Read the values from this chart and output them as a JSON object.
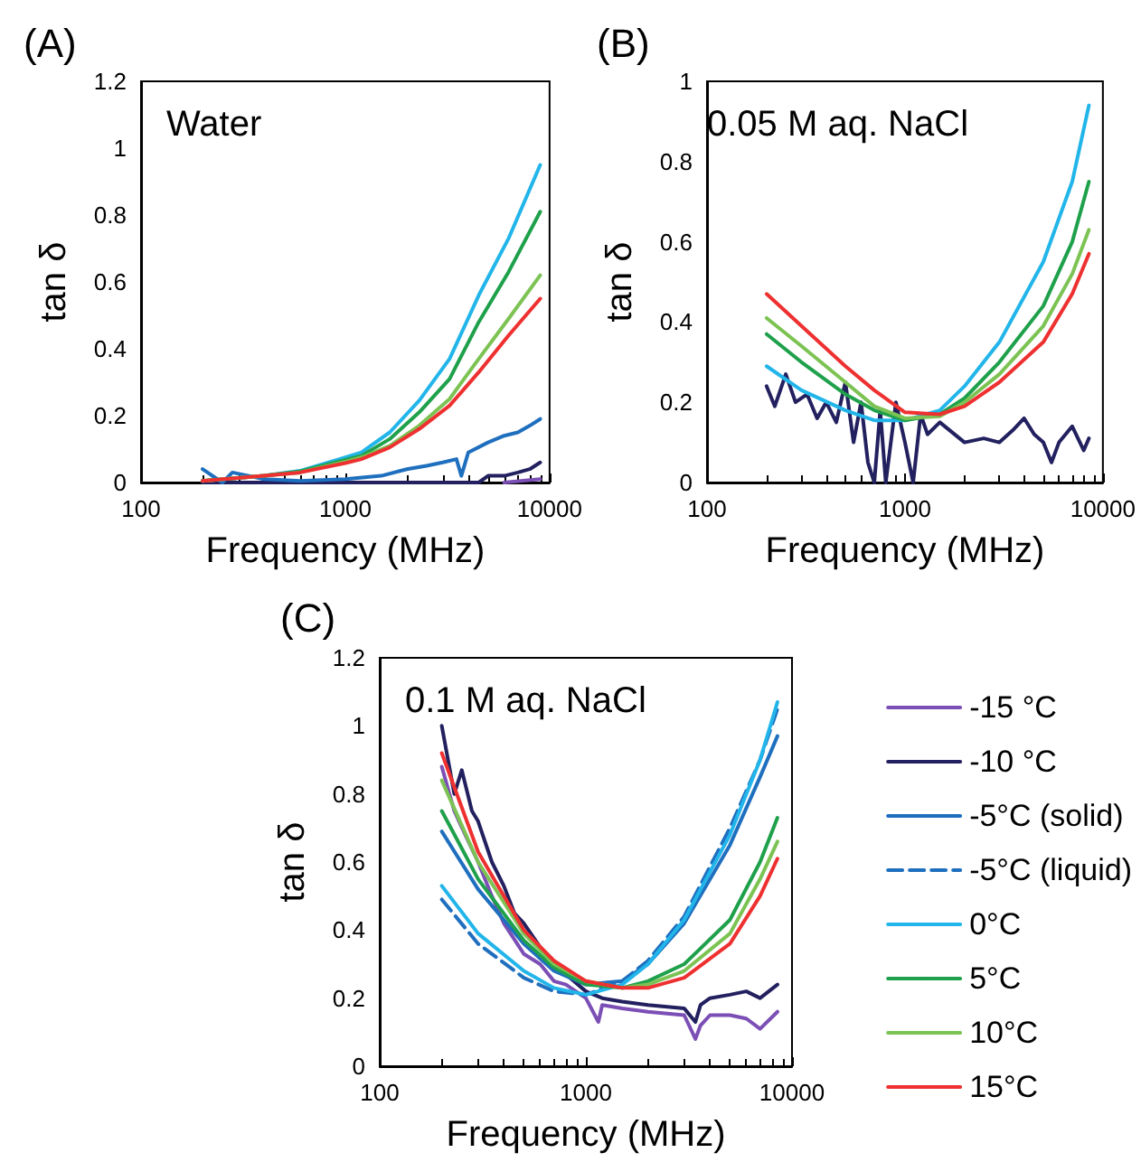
{
  "chart_data": [
    {
      "type": "line",
      "title": "(A)",
      "xlabel": "Frequency (MHz)",
      "ylabel": "tan δ",
      "annotations": [
        "Water"
      ],
      "log": "x",
      "grid": false,
      "marker": "none",
      "legend": false,
      "xlim": [
        100,
        10000
      ],
      "xticks": [
        100,
        1000,
        10000
      ],
      "ylim": [
        0,
        1.2
      ],
      "yticks": [
        0,
        0.2,
        0.4,
        0.6,
        0.8,
        1,
        1.2
      ],
      "series": [
        {
          "color": "#7b4fb5",
          "x": [
            6000,
            9000
          ],
          "values": [
            0,
            0.01
          ]
        },
        {
          "color": "#22205f",
          "x": [
            200,
            1000,
            4500,
            5000,
            6000,
            7000,
            8000,
            9000
          ],
          "values": [
            0,
            0,
            0,
            0.02,
            0.02,
            0.03,
            0.04,
            0.06
          ]
        },
        {
          "color": "#1f6fbf",
          "x": [
            200,
            250,
            280,
            400,
            600,
            1000,
            1500,
            2000,
            2500,
            3000,
            3500,
            3700,
            4000,
            5000,
            6000,
            7000,
            8000,
            9000
          ],
          "values": [
            0.04,
            0,
            0.03,
            0.01,
            0.005,
            0.01,
            0.02,
            0.04,
            0.05,
            0.06,
            0.07,
            0.02,
            0.09,
            0.12,
            0.14,
            0.15,
            0.17,
            0.19
          ]
        },
        {
          "color": "#22b5ea",
          "x": [
            200,
            400,
            600,
            1000,
            1200,
            1650,
            2300,
            3240,
            4500,
            6300,
            9000
          ],
          "values": [
            0.005,
            0.02,
            0.035,
            0.075,
            0.09,
            0.15,
            0.245,
            0.37,
            0.56,
            0.73,
            0.95
          ]
        },
        {
          "color": "#1fa04b",
          "x": [
            200,
            400,
            600,
            1000,
            1200,
            1650,
            2300,
            3240,
            4500,
            6300,
            9000
          ],
          "values": [
            0.005,
            0.02,
            0.033,
            0.068,
            0.08,
            0.13,
            0.21,
            0.31,
            0.48,
            0.63,
            0.81
          ]
        },
        {
          "color": "#7cc353",
          "x": [
            200,
            400,
            600,
            1000,
            1200,
            1650,
            2300,
            3240,
            4500,
            6300,
            9000
          ],
          "values": [
            0.005,
            0.02,
            0.03,
            0.062,
            0.075,
            0.11,
            0.17,
            0.25,
            0.37,
            0.49,
            0.62
          ]
        },
        {
          "color": "#ee3030",
          "x": [
            200,
            400,
            600,
            1000,
            1200,
            1650,
            2300,
            3240,
            4500,
            6300,
            9000
          ],
          "values": [
            0.005,
            0.02,
            0.03,
            0.058,
            0.07,
            0.105,
            0.16,
            0.23,
            0.33,
            0.44,
            0.55
          ]
        }
      ]
    },
    {
      "type": "line",
      "title": "(B)",
      "xlabel": "Frequency (MHz)",
      "ylabel": "tan δ",
      "annotations": [
        "0.05 M aq. NaCl"
      ],
      "log": "x",
      "grid": false,
      "marker": "none",
      "legend": false,
      "xlim": [
        100,
        10000
      ],
      "xticks": [
        100,
        1000,
        10000
      ],
      "ylim": [
        0,
        1
      ],
      "yticks": [
        0,
        0.2,
        0.4,
        0.6,
        0.8,
        1
      ],
      "series": [
        {
          "color": "#22205f",
          "x": [
            200,
            220,
            250,
            280,
            320,
            360,
            400,
            450,
            500,
            550,
            600,
            650,
            700,
            750,
            800,
            900,
            1000,
            1100,
            1200,
            1300,
            1500,
            2000,
            2500,
            3000,
            3500,
            4000,
            4500,
            5000,
            5500,
            6000,
            7000,
            8000,
            8500
          ],
          "values": [
            0.24,
            0.19,
            0.27,
            0.2,
            0.22,
            0.16,
            0.2,
            0.15,
            0.25,
            0.1,
            0.2,
            0.05,
            0,
            0.18,
            0,
            0.2,
            0.1,
            0,
            0.17,
            0.12,
            0.15,
            0.1,
            0.11,
            0.1,
            0.13,
            0.16,
            0.12,
            0.1,
            0.05,
            0.1,
            0.14,
            0.08,
            0.11
          ]
        },
        {
          "color": "#22b5ea",
          "x": [
            200,
            300,
            500,
            700,
            1000,
            1500,
            2000,
            3000,
            5000,
            7000,
            8500
          ],
          "values": [
            0.29,
            0.23,
            0.18,
            0.155,
            0.155,
            0.18,
            0.24,
            0.35,
            0.55,
            0.75,
            0.94
          ]
        },
        {
          "color": "#1fa04b",
          "x": [
            200,
            300,
            500,
            700,
            1000,
            1500,
            2000,
            3000,
            5000,
            7000,
            8500
          ],
          "values": [
            0.37,
            0.3,
            0.22,
            0.18,
            0.155,
            0.17,
            0.21,
            0.3,
            0.44,
            0.6,
            0.75
          ]
        },
        {
          "color": "#7cc353",
          "x": [
            200,
            300,
            500,
            700,
            1000,
            1500,
            2000,
            3000,
            5000,
            7000,
            8500
          ],
          "values": [
            0.41,
            0.34,
            0.25,
            0.19,
            0.16,
            0.165,
            0.2,
            0.27,
            0.39,
            0.52,
            0.63
          ]
        },
        {
          "color": "#ee3030",
          "x": [
            200,
            300,
            500,
            700,
            1000,
            1500,
            2000,
            3000,
            5000,
            7000,
            8500
          ],
          "values": [
            0.47,
            0.39,
            0.29,
            0.23,
            0.175,
            0.17,
            0.19,
            0.25,
            0.35,
            0.47,
            0.57
          ]
        }
      ]
    },
    {
      "type": "line",
      "title": "(C)",
      "xlabel": "Frequency (MHz)",
      "ylabel": "tan δ",
      "annotations": [
        "0.1 M aq. NaCl"
      ],
      "log": "x",
      "grid": false,
      "marker": "none",
      "legend": "right",
      "xlim": [
        100,
        10000
      ],
      "xticks": [
        100,
        1000,
        10000
      ],
      "ylim": [
        0,
        1.2
      ],
      "yticks": [
        0,
        0.2,
        0.4,
        0.6,
        0.8,
        1,
        1.2
      ],
      "series": [
        {
          "name": "-15 °C",
          "color": "#7b4fb5",
          "x": [
            200,
            230,
            260,
            300,
            350,
            400,
            500,
            600,
            700,
            800,
            1000,
            1150,
            1200,
            1500,
            2000,
            3000,
            3400,
            3600,
            4000,
            5000,
            6000,
            7000,
            8500
          ],
          "values": [
            0.88,
            0.75,
            0.68,
            0.6,
            0.5,
            0.42,
            0.33,
            0.3,
            0.25,
            0.24,
            0.2,
            0.13,
            0.18,
            0.17,
            0.16,
            0.15,
            0.08,
            0.12,
            0.15,
            0.15,
            0.14,
            0.11,
            0.16
          ]
        },
        {
          "name": "-10 °C",
          "color": "#22205f",
          "x": [
            200,
            230,
            250,
            280,
            300,
            350,
            400,
            450,
            500,
            600,
            700,
            800,
            1000,
            1200,
            1500,
            2000,
            3000,
            3400,
            3600,
            4000,
            5000,
            6000,
            7000,
            8500
          ],
          "values": [
            1.0,
            0.8,
            0.87,
            0.75,
            0.72,
            0.6,
            0.53,
            0.45,
            0.42,
            0.35,
            0.3,
            0.27,
            0.22,
            0.2,
            0.19,
            0.18,
            0.17,
            0.13,
            0.18,
            0.2,
            0.21,
            0.22,
            0.2,
            0.24
          ]
        },
        {
          "name": "-5°C (solid)",
          "color": "#1f6fbf",
          "x": [
            200,
            300,
            500,
            700,
            1000,
            1500,
            2000,
            3000,
            5000,
            7000,
            8500
          ],
          "values": [
            0.69,
            0.52,
            0.36,
            0.28,
            0.24,
            0.25,
            0.3,
            0.42,
            0.65,
            0.85,
            0.97
          ]
        },
        {
          "name": "-5°C (liquid)",
          "color": "#1f6fbf",
          "line_style": "dashed",
          "x": [
            200,
            300,
            500,
            700,
            1000,
            1500,
            2000,
            3000,
            5000,
            7000,
            8500
          ],
          "values": [
            0.49,
            0.36,
            0.26,
            0.22,
            0.21,
            0.25,
            0.31,
            0.44,
            0.7,
            0.9,
            1.05
          ]
        },
        {
          "name": "0°C",
          "color": "#22b5ea",
          "x": [
            200,
            300,
            500,
            700,
            1000,
            1500,
            2000,
            3000,
            5000,
            7000,
            8500
          ],
          "values": [
            0.53,
            0.39,
            0.28,
            0.23,
            0.21,
            0.24,
            0.3,
            0.43,
            0.68,
            0.9,
            1.07
          ]
        },
        {
          "name": "5°C",
          "color": "#1fa04b",
          "x": [
            200,
            300,
            500,
            700,
            1000,
            1500,
            2000,
            3000,
            5000,
            7000,
            8500
          ],
          "values": [
            0.75,
            0.55,
            0.37,
            0.29,
            0.24,
            0.23,
            0.25,
            0.3,
            0.43,
            0.6,
            0.73
          ]
        },
        {
          "name": "10°C",
          "color": "#7cc353",
          "x": [
            200,
            300,
            500,
            700,
            1000,
            1500,
            2000,
            3000,
            5000,
            7000,
            8500
          ],
          "values": [
            0.84,
            0.6,
            0.39,
            0.3,
            0.25,
            0.23,
            0.24,
            0.28,
            0.39,
            0.55,
            0.66
          ]
        },
        {
          "name": "15°C",
          "color": "#ee3030",
          "x": [
            200,
            300,
            500,
            700,
            1000,
            1500,
            2000,
            3000,
            5000,
            7000,
            8500
          ],
          "values": [
            0.92,
            0.63,
            0.4,
            0.31,
            0.25,
            0.23,
            0.23,
            0.26,
            0.36,
            0.5,
            0.61
          ]
        }
      ]
    }
  ]
}
